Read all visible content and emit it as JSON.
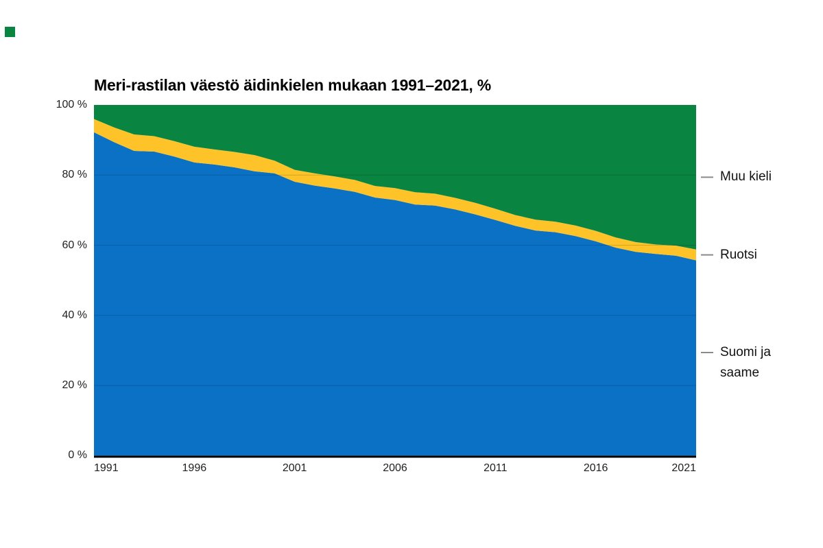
{
  "page": {
    "background": "#ffffff",
    "brand_color": "#0a8441"
  },
  "chart": {
    "title": "Meri-rastilan väestö äidinkielen mukaan 1991–2021, %",
    "y_axis": {
      "ticks": [
        {
          "label": "100 %",
          "value": 100
        },
        {
          "label": "80 %",
          "value": 80
        },
        {
          "label": "60 %",
          "value": 60
        },
        {
          "label": "40 %",
          "value": 40
        },
        {
          "label": "20 %",
          "value": 20
        },
        {
          "label": "0 %",
          "value": 0
        }
      ]
    },
    "x_axis": {
      "ticks": [
        {
          "label": "1991",
          "value": 1991
        },
        {
          "label": "1996",
          "value": 1996
        },
        {
          "label": "2001",
          "value": 2001
        },
        {
          "label": "2006",
          "value": 2006
        },
        {
          "label": "2011",
          "value": 2011
        },
        {
          "label": "2016",
          "value": 2016
        },
        {
          "label": "2021",
          "value": 2021
        }
      ]
    },
    "annotations": [
      {
        "label": "Muu kieli",
        "lines": [
          "Muu kieli"
        ],
        "series": "Muu kieli",
        "dy": 0
      },
      {
        "label": "Ruotsi",
        "lines": [
          "Ruotsi"
        ],
        "series": "Ruotsi",
        "dy": 0
      },
      {
        "label": "Suomi ja saame",
        "lines": [
          "Suomi ja",
          "saame"
        ],
        "series": "Suomi ja saame",
        "dy": -8
      }
    ],
    "colors": {
      "gridline": "rgba(0,0,0,0.16)",
      "baseline": "#000000",
      "annotation_dash": "#8a8a8a",
      "axis_text": "#202020"
    }
  },
  "chart_data": {
    "type": "area",
    "stacked": true,
    "title": "Meri-rastilan väestö äidinkielen mukaan 1991–2021, %",
    "xlabel": "",
    "ylabel": "",
    "unit": "%",
    "ylim": [
      0,
      100
    ],
    "xlim": [
      1991,
      2021
    ],
    "grid": "horizontal",
    "legend_position": "right-edge-annotations",
    "x": [
      1991,
      1992,
      1993,
      1994,
      1995,
      1996,
      1997,
      1998,
      1999,
      2000,
      2001,
      2002,
      2003,
      2004,
      2005,
      2006,
      2007,
      2008,
      2009,
      2010,
      2011,
      2012,
      2013,
      2014,
      2015,
      2016,
      2017,
      2018,
      2019,
      2020,
      2021
    ],
    "series": [
      {
        "name": "Suomi ja saame",
        "color": "#0b71c5",
        "values": [
          92.2,
          89.4,
          86.9,
          86.7,
          85.3,
          83.6,
          83.0,
          82.2,
          81.1,
          80.5,
          78.1,
          77.0,
          76.2,
          75.2,
          73.6,
          72.9,
          71.6,
          71.3,
          70.2,
          68.8,
          67.2,
          65.5,
          64.2,
          63.7,
          62.6,
          61.1,
          59.3,
          58.1,
          57.5,
          57.0,
          55.7
        ]
      },
      {
        "name": "Ruotsi",
        "color": "#fdc328",
        "values": [
          3.8,
          4.2,
          4.7,
          4.4,
          4.4,
          4.5,
          4.3,
          4.4,
          4.6,
          3.6,
          3.4,
          3.5,
          3.4,
          3.4,
          3.3,
          3.4,
          3.5,
          3.4,
          3.3,
          3.3,
          3.2,
          3.1,
          3.1,
          3.0,
          3.0,
          3.0,
          2.9,
          2.8,
          2.7,
          2.9,
          3.1
        ]
      },
      {
        "name": "Muu kieli",
        "color": "#0a8441",
        "values": [
          4.0,
          6.4,
          8.4,
          8.9,
          10.3,
          11.9,
          12.7,
          13.4,
          14.3,
          15.9,
          18.5,
          19.5,
          20.4,
          21.4,
          23.1,
          23.7,
          24.9,
          25.3,
          26.5,
          27.9,
          29.6,
          31.4,
          32.7,
          33.3,
          34.4,
          35.9,
          37.8,
          39.1,
          39.8,
          40.1,
          41.2
        ]
      }
    ]
  }
}
